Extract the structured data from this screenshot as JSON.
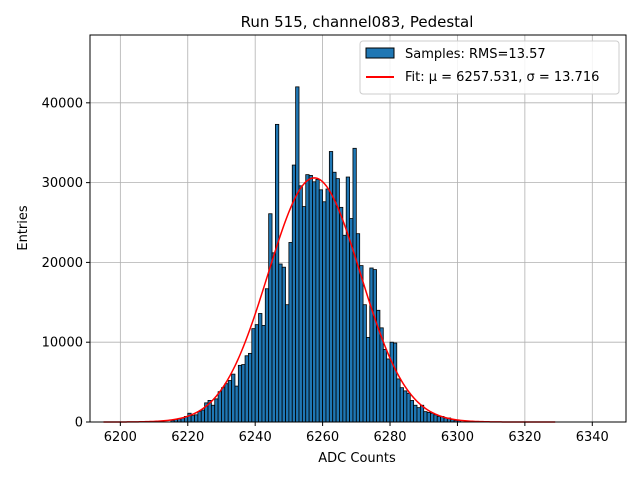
{
  "chart_data": {
    "type": "bar",
    "title": "Run 515, channel083, Pedestal",
    "xlabel": "ADC Counts",
    "ylabel": "Entries",
    "xlim": [
      6191,
      6350
    ],
    "ylim": [
      0,
      48500
    ],
    "xticks": [
      6200,
      6220,
      6240,
      6260,
      6280,
      6300,
      6320,
      6340
    ],
    "yticks": [
      0,
      10000,
      20000,
      30000,
      40000
    ],
    "grid": true,
    "legend_placement": "upper right",
    "series": [
      {
        "name": "Samples: RMS=13.57",
        "kind": "histogram",
        "color": "#1f77b4",
        "edge_color": "#000000",
        "bin_width": 1,
        "x": [
          6215,
          6216,
          6217,
          6218,
          6219,
          6220,
          6221,
          6222,
          6223,
          6224,
          6225,
          6226,
          6227,
          6228,
          6229,
          6230,
          6231,
          6232,
          6233,
          6234,
          6235,
          6236,
          6237,
          6238,
          6239,
          6240,
          6241,
          6242,
          6243,
          6244,
          6245,
          6246,
          6247,
          6248,
          6249,
          6250,
          6251,
          6252,
          6253,
          6254,
          6255,
          6256,
          6257,
          6258,
          6259,
          6260,
          6261,
          6262,
          6263,
          6264,
          6265,
          6266,
          6267,
          6268,
          6269,
          6270,
          6271,
          6272,
          6273,
          6274,
          6275,
          6276,
          6277,
          6278,
          6279,
          6280,
          6281,
          6282,
          6283,
          6284,
          6285,
          6286,
          6287,
          6288,
          6289,
          6290,
          6291,
          6292,
          6293,
          6294,
          6295,
          6296,
          6297,
          6298,
          6299,
          6300
        ],
        "values": [
          200,
          300,
          400,
          500,
          700,
          1100,
          800,
          900,
          1300,
          1500,
          2400,
          2700,
          2100,
          2900,
          3800,
          4300,
          4800,
          5200,
          6000,
          4500,
          7100,
          7200,
          8300,
          8600,
          11700,
          12200,
          13600,
          12100,
          16700,
          26100,
          21200,
          37300,
          19800,
          19400,
          14700,
          22500,
          32200,
          42000,
          29600,
          27000,
          31000,
          30900,
          30100,
          30400,
          29100,
          27600,
          29200,
          33900,
          31300,
          30500,
          26900,
          23400,
          30700,
          25500,
          34300,
          23600,
          19600,
          14700,
          10600,
          19300,
          19100,
          14000,
          11800,
          9100,
          7900,
          10000,
          9900,
          5400,
          4300,
          3900,
          3600,
          2700,
          2100,
          1800,
          2100,
          1300,
          1200,
          1100,
          900,
          700,
          700,
          500,
          500,
          300,
          200,
          200
        ]
      },
      {
        "name": "Fit: μ = 6257.531, σ = 13.716",
        "kind": "gaussian-fit",
        "color": "#ff0000",
        "mu": 6257.531,
        "sigma": 13.716,
        "amplitude": 30600,
        "x_range": [
          6195,
          6329
        ]
      }
    ]
  }
}
